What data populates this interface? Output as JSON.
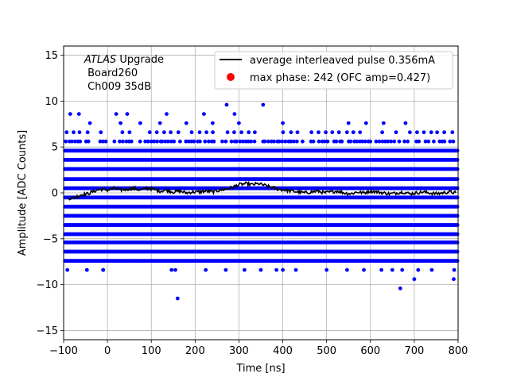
{
  "chart_data": {
    "type": "scatter",
    "title": "",
    "xlabel": "Time [ns]",
    "ylabel": "Amplitude [ADC Counts]",
    "xlim": [
      -100,
      800
    ],
    "ylim": [
      -16,
      16
    ],
    "xticks": [
      -100,
      0,
      100,
      200,
      300,
      400,
      500,
      600,
      700,
      800
    ],
    "yticks": [
      -15,
      -10,
      -5,
      0,
      5,
      10,
      15
    ],
    "grid": true,
    "legend_position": "top-right",
    "annotation": {
      "line1_italic": "ATLAS",
      "line1_rest": " Upgrade",
      "line2": " Board260",
      "line3": " Ch009 35dB"
    },
    "series": [
      {
        "name": "average interleaved pulse 0.356mA",
        "type": "line",
        "color": "#000000",
        "x": [
          -90,
          -75,
          -60,
          -45,
          -30,
          -15,
          0,
          15,
          30,
          45,
          60,
          75,
          90,
          105,
          120,
          135,
          150,
          165,
          180,
          195,
          210,
          225,
          240,
          255,
          270,
          285,
          300,
          315,
          330,
          345,
          360,
          375,
          390,
          405,
          420,
          435,
          450,
          465,
          480,
          495,
          510,
          525,
          540,
          555,
          570,
          585,
          600,
          615,
          630,
          645,
          660,
          675,
          690,
          705,
          720,
          735,
          750,
          765,
          780,
          795
        ],
        "y": [
          -0.6,
          -0.5,
          -0.2,
          -0.1,
          0.2,
          0.4,
          0.3,
          0.5,
          0.3,
          0.4,
          0.5,
          0.3,
          0.5,
          0.4,
          0.2,
          0.3,
          0.1,
          0.2,
          0.0,
          0.1,
          0.1,
          0.2,
          0.1,
          0.3,
          0.4,
          0.6,
          0.9,
          1.0,
          0.9,
          1.0,
          0.8,
          0.6,
          0.4,
          0.3,
          0.2,
          0.1,
          0.0,
          0.1,
          0.2,
          0.0,
          0.1,
          0.2,
          0.0,
          -0.1,
          0.1,
          0.0,
          0.2,
          0.1,
          0.0,
          -0.1,
          0.0,
          0.1,
          -0.1,
          0.0,
          0.1,
          0.0,
          -0.1,
          0.0,
          0.1,
          0.0
        ]
      },
      {
        "name": "max phase: 242 (OFC amp=0.427)",
        "type": "scatter",
        "color": "#ff0000"
      },
      {
        "name": "",
        "type": "scatter",
        "color": "#0000ff",
        "levels": [
          -7.4,
          -6.4,
          -5.4,
          -4.5,
          -3.5,
          -2.5,
          -1.5,
          -0.5,
          0.5,
          1.5,
          2.6,
          3.6,
          4.6
        ],
        "sparse_upper": [
          5.6,
          6.6
        ],
        "sparse_lower": [
          -8.4
        ],
        "outliers": [
          {
            "x": -85,
            "y": 8.6
          },
          {
            "x": -65,
            "y": 8.6
          },
          {
            "x": 20,
            "y": 8.6
          },
          {
            "x": 45,
            "y": 8.6
          },
          {
            "x": 135,
            "y": 8.6
          },
          {
            "x": 220,
            "y": 8.6
          },
          {
            "x": 272,
            "y": 9.6
          },
          {
            "x": 290,
            "y": 8.6
          },
          {
            "x": 355,
            "y": 9.6
          },
          {
            "x": 30,
            "y": 7.6
          },
          {
            "x": 75,
            "y": 7.6
          },
          {
            "x": 180,
            "y": 7.6
          },
          {
            "x": 240,
            "y": 7.6
          },
          {
            "x": 300,
            "y": 7.6
          },
          {
            "x": 400,
            "y": 7.6
          },
          {
            "x": 550,
            "y": 7.6
          },
          {
            "x": 590,
            "y": 7.6
          },
          {
            "x": 630,
            "y": 7.6
          },
          {
            "x": 680,
            "y": 7.6
          },
          {
            "x": 120,
            "y": 7.6
          },
          {
            "x": -40,
            "y": 7.6
          },
          {
            "x": 160,
            "y": -11.5
          },
          {
            "x": 668,
            "y": -10.4
          },
          {
            "x": 700,
            "y": -9.4
          },
          {
            "x": 790,
            "y": -9.4
          },
          {
            "x": 400,
            "y": -8.4
          },
          {
            "x": 270,
            "y": -8.4
          },
          {
            "x": 155,
            "y": -8.4
          },
          {
            "x": 350,
            "y": -8.4
          },
          {
            "x": 500,
            "y": -8.4
          },
          {
            "x": 650,
            "y": -8.4
          },
          {
            "x": -10,
            "y": -8.4
          },
          {
            "x": 740,
            "y": -8.4
          }
        ]
      }
    ]
  }
}
